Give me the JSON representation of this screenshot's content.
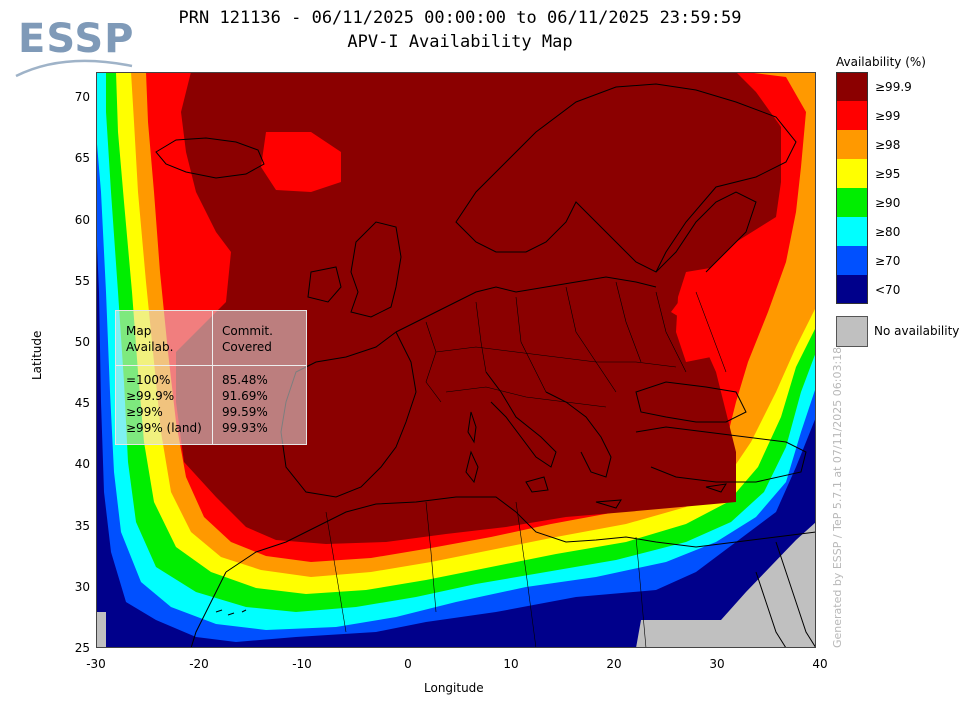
{
  "logo": {
    "text": "ESSP"
  },
  "title": {
    "line1": "PRN 121136 - 06/11/2025 00:00:00 to 06/11/2025 23:59:59",
    "line2": "APV-I Availability Map"
  },
  "axes": {
    "xlabel": "Longitude",
    "ylabel": "Latitude",
    "xticks": [
      "-30",
      "-20",
      "-10",
      "0",
      "10",
      "20",
      "30",
      "40"
    ],
    "yticks": [
      "70",
      "65",
      "60",
      "55",
      "50",
      "45",
      "40",
      "35",
      "30",
      "25"
    ],
    "xrange": [
      -30,
      40
    ],
    "yrange": [
      25,
      72.5
    ]
  },
  "legend": {
    "title": "Availability (%)",
    "items": [
      {
        "label": "≥99.9",
        "color": "#8b0000"
      },
      {
        "label": "≥99",
        "color": "#ff0000"
      },
      {
        "label": "≥98",
        "color": "#ff9900"
      },
      {
        "label": "≥95",
        "color": "#ffff00"
      },
      {
        "label": "≥90",
        "color": "#00ee00"
      },
      {
        "label": "≥80",
        "color": "#00ffff"
      },
      {
        "label": "≥70",
        "color": "#0050ff"
      },
      {
        "label": "<70",
        "color": "#00008b"
      }
    ],
    "no_availability": {
      "label": "No availability",
      "color": "#c0c0c0"
    }
  },
  "stats_table": {
    "header_col1": "Map\nAvailab.",
    "header_col2": "Commit.\nCovered",
    "rows": [
      {
        "level": "=100%",
        "covered": "85.48%"
      },
      {
        "level": "≥99.9%",
        "covered": "91.69%"
      },
      {
        "level": "≥99%",
        "covered": "99.59%"
      },
      {
        "level": "≥99% (land)",
        "covered": "99.93%"
      }
    ]
  },
  "generated_by": "Generated by ESSP / TeP 5.7.1 at 07/11/2025 06:03:18"
}
